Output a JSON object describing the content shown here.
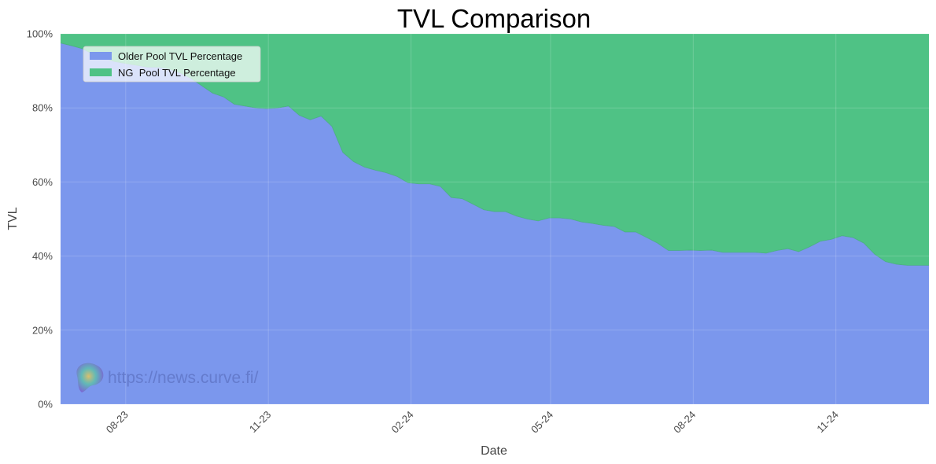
{
  "chart_data": {
    "type": "area",
    "stacked": true,
    "normalized": true,
    "title": "TVL Comparison",
    "xlabel": "Date",
    "ylabel": "TVL",
    "ylim": [
      0,
      100
    ],
    "y_ticks": [
      0,
      20,
      40,
      60,
      80,
      100
    ],
    "y_tick_labels": [
      "0%",
      "20%",
      "40%",
      "60%",
      "80%",
      "100%"
    ],
    "x_range": [
      "2023-06-20",
      "2024-12-31"
    ],
    "x_ticks": [
      "2023-08-01",
      "2023-11-01",
      "2024-02-01",
      "2024-05-01",
      "2024-08-01",
      "2024-11-01"
    ],
    "x_tick_labels": [
      "08-23",
      "11-23",
      "02-24",
      "05-24",
      "08-24",
      "11-24"
    ],
    "grid": true,
    "legend": "top-left",
    "x": [
      "2023-06-20",
      "2023-06-27",
      "2023-07-04",
      "2023-07-11",
      "2023-07-18",
      "2023-07-25",
      "2023-08-01",
      "2023-08-08",
      "2023-08-15",
      "2023-08-22",
      "2023-08-29",
      "2023-09-05",
      "2023-09-12",
      "2023-09-19",
      "2023-09-26",
      "2023-10-03",
      "2023-10-10",
      "2023-10-17",
      "2023-10-24",
      "2023-10-31",
      "2023-11-07",
      "2023-11-14",
      "2023-11-21",
      "2023-11-28",
      "2023-12-05",
      "2023-12-12",
      "2023-12-19",
      "2023-12-26",
      "2024-01-02",
      "2024-01-09",
      "2024-01-16",
      "2024-01-23",
      "2024-01-30",
      "2024-02-06",
      "2024-02-13",
      "2024-02-20",
      "2024-02-27",
      "2024-03-05",
      "2024-03-12",
      "2024-03-19",
      "2024-03-26",
      "2024-04-02",
      "2024-04-09",
      "2024-04-16",
      "2024-04-23",
      "2024-04-30",
      "2024-05-07",
      "2024-05-14",
      "2024-05-21",
      "2024-05-28",
      "2024-06-04",
      "2024-06-11",
      "2024-06-18",
      "2024-06-25",
      "2024-07-02",
      "2024-07-09",
      "2024-07-16",
      "2024-07-23",
      "2024-07-30",
      "2024-08-06",
      "2024-08-13",
      "2024-08-20",
      "2024-08-27",
      "2024-09-03",
      "2024-09-10",
      "2024-09-17",
      "2024-09-24",
      "2024-10-01",
      "2024-10-08",
      "2024-10-15",
      "2024-10-22",
      "2024-10-29",
      "2024-11-05",
      "2024-11-12",
      "2024-11-19",
      "2024-11-26",
      "2024-12-03",
      "2024-12-10",
      "2024-12-17",
      "2024-12-24",
      "2024-12-31"
    ],
    "series": [
      {
        "name": "Older Pool TVL Percentage",
        "color": "#7b97ed",
        "values": [
          97.5,
          96.8,
          96.0,
          94.5,
          93.5,
          92.5,
          92.0,
          91.5,
          91.0,
          91.0,
          90.5,
          89.5,
          88.0,
          86.0,
          84.0,
          83.0,
          81.0,
          80.5,
          80.0,
          79.8,
          80.0,
          80.5,
          78.0,
          76.8,
          77.8,
          75.0,
          68.0,
          65.5,
          64.0,
          63.2,
          62.5,
          61.5,
          59.8,
          59.5,
          59.5,
          58.8,
          55.8,
          55.5,
          54.0,
          52.5,
          52.0,
          52.0,
          50.8,
          50.0,
          49.5,
          50.3,
          50.3,
          50.0,
          49.2,
          48.8,
          48.3,
          48.0,
          46.5,
          46.5,
          45.0,
          43.5,
          41.5,
          41.5,
          41.6,
          41.5,
          41.6,
          41.0,
          41.0,
          41.0,
          41.0,
          40.8,
          41.5,
          42.0,
          41.2,
          42.5,
          44.0,
          44.5,
          45.5,
          45.0,
          43.5,
          40.5,
          38.5,
          37.8,
          37.5,
          37.5,
          37.5
        ]
      },
      {
        "name": "NG  Pool TVL Percentage",
        "color": "#4fc285",
        "values": [
          2.5,
          3.2,
          4.0,
          5.5,
          6.5,
          7.5,
          8.0,
          8.5,
          9.0,
          9.0,
          9.5,
          10.5,
          12.0,
          14.0,
          16.0,
          17.0,
          19.0,
          19.5,
          20.0,
          20.2,
          20.0,
          19.5,
          22.0,
          23.2,
          22.2,
          25.0,
          32.0,
          34.5,
          36.0,
          36.8,
          37.5,
          38.5,
          40.2,
          40.5,
          40.5,
          41.2,
          44.2,
          44.5,
          46.0,
          47.5,
          48.0,
          48.0,
          49.2,
          50.0,
          50.5,
          49.7,
          49.7,
          50.0,
          50.8,
          51.2,
          51.7,
          52.0,
          53.5,
          53.5,
          55.0,
          56.5,
          58.5,
          58.5,
          58.4,
          58.5,
          58.4,
          59.0,
          59.0,
          59.0,
          59.0,
          59.2,
          58.5,
          58.0,
          58.8,
          57.5,
          56.0,
          55.5,
          54.5,
          55.0,
          56.5,
          59.5,
          61.5,
          62.2,
          62.5,
          62.5,
          62.5
        ]
      }
    ]
  },
  "watermark": {
    "text": "https://news.curve.fi/"
  }
}
